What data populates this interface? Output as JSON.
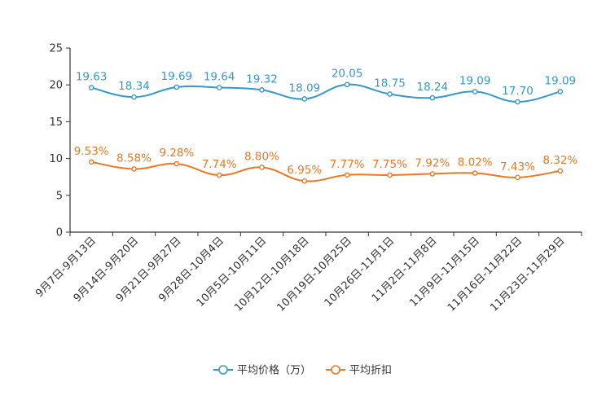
{
  "chart_data": {
    "type": "line",
    "title": "",
    "xlabel": "",
    "ylabel": "",
    "ylim": [
      0,
      25
    ],
    "yticks": [
      0,
      5,
      10,
      15,
      20,
      25
    ],
    "grid": false,
    "legend_position": "bottom-center",
    "smooth": true,
    "categories": [
      "9月7日-9月13日",
      "9月14日-9月20日",
      "9月21日-9月27日",
      "9月28日-10月4日",
      "10月5日-10月11日",
      "10月12日-10月18日",
      "10月19日-10月25日",
      "10月26日-11月1日",
      "11月2日-11月8日",
      "11月9日-11月15日",
      "11月16日-11月22日",
      "11月23日-11月29日"
    ],
    "series": [
      {
        "name": "平均价格（万）",
        "color": "#3399cc",
        "values": [
          19.63,
          18.34,
          19.69,
          19.64,
          19.32,
          18.09,
          20.05,
          18.75,
          18.24,
          19.09,
          17.7,
          19.09
        ],
        "labels": [
          "19.63",
          "18.34",
          "19.69",
          "19.64",
          "19.32",
          "18.09",
          "20.05",
          "18.75",
          "18.24",
          "19.09",
          "17.70",
          "19.09"
        ]
      },
      {
        "name": "平均折扣",
        "color": "#ee7722",
        "values": [
          9.53,
          8.58,
          9.28,
          7.74,
          8.8,
          6.95,
          7.77,
          7.75,
          7.92,
          8.02,
          7.43,
          8.32
        ],
        "labels": [
          "9.53%",
          "8.58%",
          "9.28%",
          "7.74%",
          "8.80%",
          "6.95%",
          "7.77%",
          "7.75%",
          "7.92%",
          "8.02%",
          "7.43%",
          "8.32%"
        ]
      }
    ]
  }
}
